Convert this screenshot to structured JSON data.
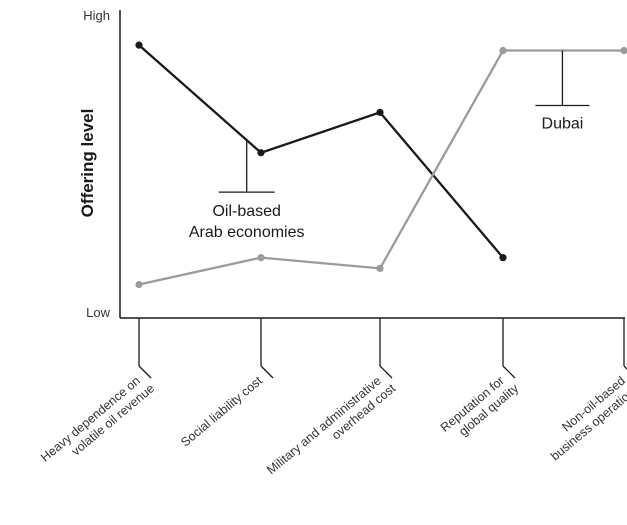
{
  "chart_data": {
    "type": "line",
    "ylabel": "Offering level",
    "y_ticks": {
      "high": "High",
      "low": "Low"
    },
    "ylim": [
      0,
      10
    ],
    "categories": [
      [
        "Heavy dependence on",
        "volatile oil revenue"
      ],
      [
        "Social liability cost"
      ],
      [
        "Military and administrative",
        "overhead cost"
      ],
      [
        "Reputation for",
        "global quality"
      ],
      [
        "Non-oil-based",
        "business operations"
      ]
    ],
    "series": [
      {
        "name": "Oil-based Arab economies",
        "color": "#1a1a1a",
        "values": [
          9.4,
          5.4,
          6.9,
          1.5,
          null
        ]
      },
      {
        "name": "Dubai",
        "color": "#9b9b9b",
        "values": [
          0.5,
          1.5,
          1.1,
          9.2,
          9.2
        ]
      }
    ],
    "annotations": [
      {
        "series": 0,
        "lines": [
          "Oil-based",
          "Arab economies"
        ]
      },
      {
        "series": 1,
        "lines": [
          "Dubai"
        ]
      }
    ],
    "grid": false,
    "legend": "none"
  }
}
